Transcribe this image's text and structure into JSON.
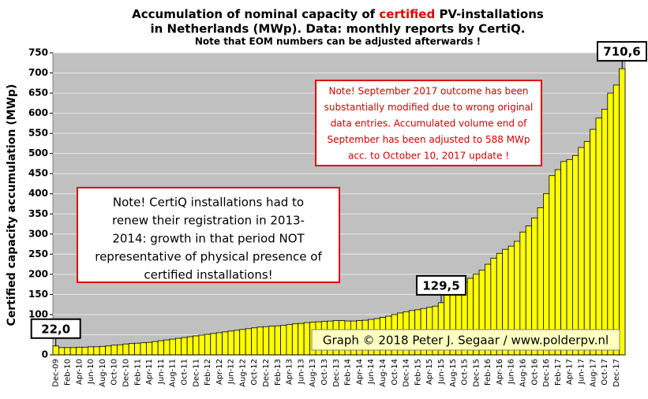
{
  "chart_data": {
    "type": "bar",
    "title": {
      "line1": [
        "Accumulation  of nominal capacity of ",
        "certified",
        " PV-installations"
      ],
      "line2": "in Netherlands (MWp). Data: monthly  reports by CertiQ.",
      "line3": "Note that EOM numbers can be adjusted afterwards  !"
    },
    "y_label": "Certified  capacity accumulation  (MWp)",
    "notes": [
      {
        "lines": [
          "Note! CertiQ installations had to",
          "renew their registration in 2013-",
          "2014:  growth in that period NOT",
          "representative of physical presence of",
          "certified installations!"
        ]
      },
      {
        "lines": [
          "Note! September 2017 outcome has been",
          "substantially modified due to wrong original",
          "data entries. Accumulated volume end of",
          "September has been adjusted to 588 MWp",
          "acc. to October 10, 2017 update !"
        ]
      }
    ],
    "credit": "Graph © 2018 Peter J. Segaar / www.polderpv.nl",
    "categories": [
      "Dec-09",
      null,
      "Feb-10",
      null,
      "Apr-10",
      null,
      "Jun-10",
      null,
      "Aug-10",
      null,
      "Oct-10",
      null,
      "Dec-10",
      null,
      "Feb-11",
      null,
      "Apr-11",
      null,
      "Jun-11",
      null,
      "Aug-11",
      null,
      "Oct-11",
      null,
      "Dec-11",
      null,
      "Feb-12",
      null,
      "Apr-12",
      null,
      "Jun-12",
      null,
      "Aug-12",
      null,
      "Oct-12",
      null,
      "Dec-12",
      null,
      "Feb-13",
      null,
      "Apr-13",
      null,
      "Jun-13",
      null,
      "Aug-13",
      null,
      "Oct-13",
      null,
      "Dec-13",
      null,
      "Feb-14",
      null,
      "Apr-14",
      null,
      "Jun-14",
      null,
      "Aug-14",
      null,
      "Oct-14",
      null,
      "Dec-14",
      null,
      "Feb-15",
      null,
      "Apr-15",
      null,
      "Jun-15",
      null,
      "Aug-15",
      null,
      "Oct-15",
      null,
      "Dec-15",
      null,
      "Feb-16",
      null,
      "Apr-16",
      null,
      "Jun-16",
      null,
      "Aug-16",
      null,
      "Oct-16",
      null,
      "Dec-16",
      null,
      "Feb-17",
      null,
      "Apr-17",
      null,
      "Jun-17",
      null,
      "Aug-17",
      null,
      "Oct-17",
      null,
      "Dec-17",
      null
    ],
    "values": [
      22.0,
      18,
      18,
      18,
      19,
      19,
      20,
      20,
      21,
      22,
      24,
      25,
      27,
      28,
      29,
      30,
      31,
      33,
      35,
      37,
      39,
      41,
      43,
      45,
      47,
      49,
      51,
      53,
      55,
      57,
      59,
      61,
      63,
      65,
      67,
      69,
      70,
      71,
      72,
      73,
      75,
      77,
      78,
      80,
      81,
      82,
      83,
      84,
      85,
      85,
      84,
      84,
      85,
      86,
      88,
      90,
      93,
      96,
      100,
      104,
      107,
      110,
      112,
      115,
      118,
      121,
      129.5,
      148,
      158,
      168,
      180,
      190,
      200,
      210,
      225,
      240,
      252,
      262,
      270,
      282,
      305,
      320,
      340,
      365,
      400,
      445,
      460,
      480,
      485,
      495,
      515,
      530,
      560,
      588,
      610,
      650,
      670,
      710.6
    ],
    "value_labels": [
      "22,0",
      null,
      null,
      null,
      null,
      null,
      null,
      null,
      null,
      null,
      null,
      null,
      null,
      null,
      null,
      null,
      null,
      null,
      null,
      null,
      null,
      null,
      null,
      null,
      null,
      null,
      null,
      null,
      null,
      null,
      null,
      null,
      null,
      null,
      null,
      null,
      null,
      null,
      null,
      null,
      null,
      null,
      null,
      null,
      null,
      null,
      null,
      null,
      null,
      null,
      null,
      null,
      null,
      null,
      null,
      null,
      null,
      null,
      null,
      null,
      null,
      null,
      null,
      null,
      null,
      null,
      "129,5",
      null,
      null,
      null,
      null,
      null,
      null,
      null,
      null,
      null,
      null,
      null,
      null,
      null,
      null,
      null,
      null,
      null,
      null,
      null,
      null,
      null,
      null,
      null,
      null,
      null,
      null,
      null,
      null,
      null,
      null,
      "710,6"
    ],
    "color": "#ffff00",
    "ylim": [
      0,
      750
    ],
    "yticks": [
      0,
      50,
      100,
      150,
      200,
      250,
      300,
      350,
      400,
      450,
      500,
      550,
      600,
      650,
      700,
      750
    ],
    "grid": true
  }
}
